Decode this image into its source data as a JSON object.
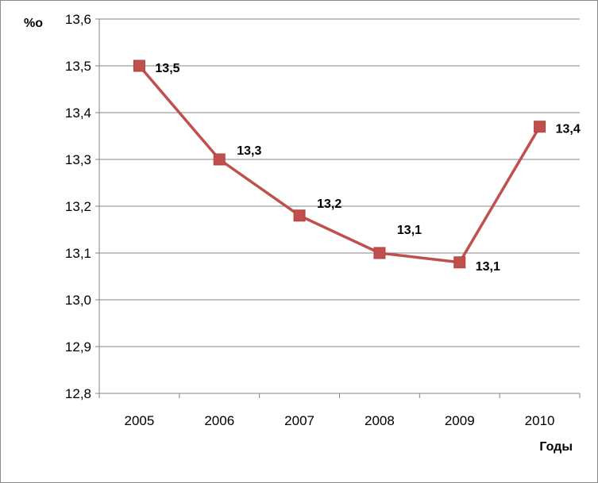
{
  "chart_data": {
    "type": "line",
    "categories": [
      "2005",
      "2006",
      "2007",
      "2008",
      "2009",
      "2010"
    ],
    "series": [
      {
        "values": [
          13.5,
          13.3,
          13.18,
          13.1,
          13.08,
          13.37
        ],
        "data_labels": [
          "13,5",
          "13,3",
          "13,2",
          "13,1",
          "13,1",
          "13,4"
        ],
        "color": "#C0504D"
      }
    ],
    "y_ticks": [
      "12,8",
      "12,9",
      "13,0",
      "13,1",
      "13,2",
      "13,3",
      "13,4",
      "13,5",
      "13,6"
    ],
    "ylim": [
      12.8,
      13.6
    ],
    "ylabel": "%о",
    "xlabel": "Годы",
    "grid": true,
    "legend": "none",
    "marker": "square"
  }
}
